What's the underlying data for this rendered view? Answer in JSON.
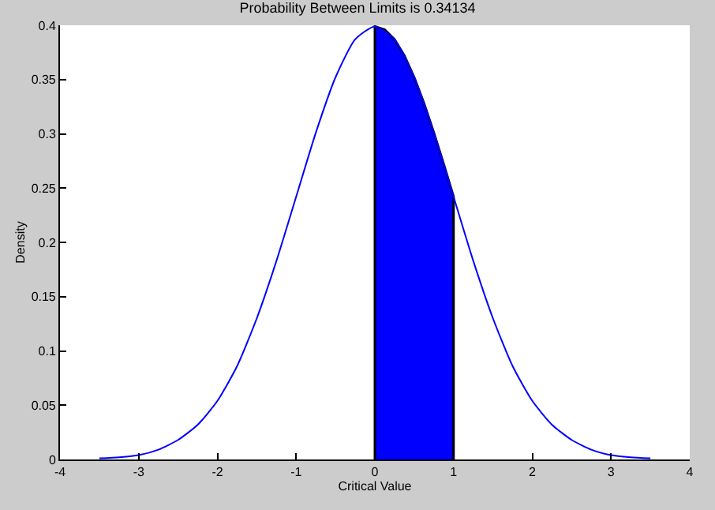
{
  "chart_data": {
    "type": "line",
    "title": "Probability Between Limits is 0.34134",
    "xlabel": "Critical Value",
    "ylabel": "Density",
    "xlim": [
      -4,
      4
    ],
    "xticks": [
      -4,
      -3,
      -2,
      -1,
      0,
      1,
      2,
      3,
      4
    ],
    "ylim": [
      0,
      0.4
    ],
    "yticks": [
      0,
      0.05,
      0.1,
      0.15,
      0.2,
      0.25,
      0.3,
      0.35,
      0.4
    ],
    "series": [
      {
        "color": "#0000ff",
        "x": [
          -3.5,
          -3.25,
          -3,
          -2.75,
          -2.5,
          -2.25,
          -2,
          -1.75,
          -1.5,
          -1.25,
          -1,
          -0.75,
          -0.5,
          -0.25,
          0,
          0.25,
          0.5,
          0.75,
          1,
          1.25,
          1.5,
          1.75,
          2,
          2.25,
          2.5,
          2.75,
          3,
          3.25,
          3.5
        ],
        "values": [
          0.001,
          0.002,
          0.004,
          0.009,
          0.018,
          0.032,
          0.054,
          0.086,
          0.13,
          0.183,
          0.242,
          0.301,
          0.352,
          0.387,
          0.399,
          0.387,
          0.352,
          0.301,
          0.242,
          0.183,
          0.13,
          0.086,
          0.054,
          0.032,
          0.018,
          0.009,
          0.004,
          0.002,
          0.001
        ]
      },
      {
        "type": "area",
        "color": "#0000ff",
        "x": [
          0,
          0.125,
          0.25,
          0.375,
          0.5,
          0.625,
          0.75,
          0.875,
          1
        ],
        "values": [
          0.399,
          0.396,
          0.387,
          0.372,
          0.352,
          0.328,
          0.301,
          0.272,
          0.242
        ]
      }
    ]
  }
}
